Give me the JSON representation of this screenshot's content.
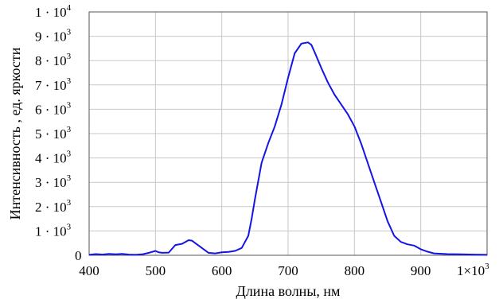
{
  "chart_data": {
    "type": "line",
    "xlabel": "Длина волны, нм",
    "ylabel": "Интенсивность , ед. яркости",
    "xlim": [
      400,
      1000
    ],
    "ylim": [
      0,
      10000
    ],
    "grid": true,
    "x_ticks": [
      {
        "value": 400,
        "base": "400",
        "sup": ""
      },
      {
        "value": 500,
        "base": "500",
        "sup": ""
      },
      {
        "value": 600,
        "base": "600",
        "sup": ""
      },
      {
        "value": 700,
        "base": "700",
        "sup": ""
      },
      {
        "value": 800,
        "base": "800",
        "sup": ""
      },
      {
        "value": 900,
        "base": "900",
        "sup": ""
      },
      {
        "value": 1000,
        "base": "1×10",
        "sup": "3"
      }
    ],
    "y_ticks": [
      {
        "value": 0,
        "base": "0",
        "sup": ""
      },
      {
        "value": 1000,
        "base": "1 · 10",
        "sup": "3"
      },
      {
        "value": 2000,
        "base": "2 · 10",
        "sup": "3"
      },
      {
        "value": 3000,
        "base": "3 · 10",
        "sup": "3"
      },
      {
        "value": 4000,
        "base": "4 · 10",
        "sup": "3"
      },
      {
        "value": 5000,
        "base": "5 · 10",
        "sup": "3"
      },
      {
        "value": 6000,
        "base": "6 · 10",
        "sup": "3"
      },
      {
        "value": 7000,
        "base": "7 · 10",
        "sup": "3"
      },
      {
        "value": 8000,
        "base": "8 · 10",
        "sup": "3"
      },
      {
        "value": 9000,
        "base": "9 · 10",
        "sup": "3"
      },
      {
        "value": 10000,
        "base": "1 · 10",
        "sup": "4"
      }
    ],
    "series": [
      {
        "color": "#1414e6",
        "x": [
          400,
          410,
          420,
          430,
          440,
          450,
          460,
          470,
          480,
          490,
          500,
          505,
          510,
          520,
          530,
          540,
          550,
          555,
          560,
          570,
          580,
          590,
          600,
          610,
          620,
          630,
          640,
          645,
          650,
          660,
          670,
          680,
          690,
          700,
          710,
          720,
          730,
          735,
          740,
          750,
          760,
          770,
          780,
          790,
          800,
          810,
          820,
          830,
          840,
          850,
          860,
          870,
          880,
          890,
          900,
          910,
          920,
          940,
          960,
          980,
          1000
        ],
        "y": [
          20,
          50,
          30,
          60,
          40,
          60,
          30,
          20,
          40,
          100,
          180,
          120,
          100,
          110,
          420,
          470,
          620,
          600,
          500,
          300,
          100,
          80,
          120,
          140,
          180,
          300,
          800,
          1500,
          2300,
          3800,
          4600,
          5300,
          6200,
          7300,
          8300,
          8700,
          8750,
          8650,
          8350,
          7700,
          7100,
          6600,
          6200,
          5800,
          5300,
          4600,
          3800,
          3000,
          2200,
          1400,
          800,
          550,
          450,
          400,
          250,
          150,
          80,
          50,
          40,
          30,
          20
        ]
      }
    ]
  }
}
